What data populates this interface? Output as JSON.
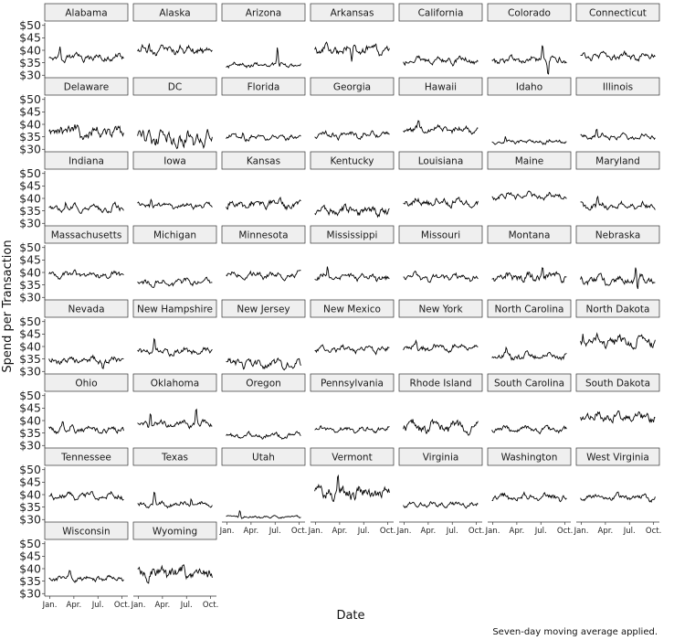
{
  "chart_data": {
    "type": "line",
    "layout": "facet_wrap",
    "ylabel": "Spend per Transaction",
    "xlabel": "Date",
    "caption": "Seven-day moving average applied.",
    "yticks": [
      "$50",
      "$45",
      "$40",
      "$35",
      "$30"
    ],
    "ytick_values": [
      50,
      45,
      40,
      35,
      30
    ],
    "ylim": [
      29,
      51
    ],
    "xticks": [
      "Jan.",
      "Apr.",
      "Jul.",
      "Oct."
    ],
    "xtick_values": [
      0,
      3,
      6,
      9
    ],
    "xlim": [
      -0.4,
      9.5
    ],
    "line_color": "#000000",
    "strip_fill": "#efefef",
    "panels": [
      {
        "name": "Alabama",
        "base": 37,
        "amp": 1.5,
        "spikes": [
          [
            1.3,
            4
          ]
        ]
      },
      {
        "name": "Alaska",
        "base": 40,
        "amp": 2.0,
        "spikes": [
          [
            1.3,
            3
          ],
          [
            5.2,
            3
          ]
        ]
      },
      {
        "name": "Arizona",
        "base": 34,
        "amp": 1.2,
        "spikes": [
          [
            6.3,
            7
          ]
        ]
      },
      {
        "name": "Arkansas",
        "base": 40,
        "amp": 2.0,
        "spikes": [
          [
            4.5,
            -6
          ]
        ]
      },
      {
        "name": "California",
        "base": 36,
        "amp": 1.5,
        "spikes": [
          [
            1.6,
            2
          ]
        ]
      },
      {
        "name": "Colorado",
        "base": 36,
        "amp": 1.5,
        "spikes": [
          [
            6.2,
            6
          ],
          [
            6.9,
            -5
          ]
        ]
      },
      {
        "name": "Connecticut",
        "base": 37.5,
        "amp": 1.5,
        "spikes": []
      },
      {
        "name": "Delaware",
        "base": 37,
        "amp": 2.5,
        "spikes": [
          [
            1.4,
            4
          ]
        ]
      },
      {
        "name": "DC",
        "base": 34,
        "amp": 3.5,
        "spikes": []
      },
      {
        "name": "Florida",
        "base": 35,
        "amp": 1.2,
        "spikes": [
          [
            2.0,
            3
          ]
        ]
      },
      {
        "name": "Georgia",
        "base": 36,
        "amp": 1.5,
        "spikes": []
      },
      {
        "name": "Hawaii",
        "base": 38,
        "amp": 1.5,
        "spikes": [
          [
            1.8,
            3
          ]
        ]
      },
      {
        "name": "Idaho",
        "base": 33,
        "amp": 1.0,
        "spikes": [
          [
            1.6,
            2
          ]
        ]
      },
      {
        "name": "Illinois",
        "base": 35,
        "amp": 1.2,
        "spikes": [
          [
            1.9,
            4
          ]
        ]
      },
      {
        "name": "Indiana",
        "base": 36,
        "amp": 1.5,
        "spikes": [
          [
            2.0,
            2
          ]
        ]
      },
      {
        "name": "Iowa",
        "base": 37,
        "amp": 1.2,
        "spikes": [
          [
            1.6,
            3
          ]
        ]
      },
      {
        "name": "Kansas",
        "base": 37.5,
        "amp": 2.0,
        "spikes": []
      },
      {
        "name": "Kentucky",
        "base": 35,
        "amp": 2.0,
        "spikes": []
      },
      {
        "name": "Louisiana",
        "base": 38.5,
        "amp": 2.0,
        "spikes": []
      },
      {
        "name": "Maine",
        "base": 41,
        "amp": 1.5,
        "spikes": []
      },
      {
        "name": "Maryland",
        "base": 37,
        "amp": 1.5,
        "spikes": [
          [
            2.0,
            3
          ]
        ]
      },
      {
        "name": "Massachusetts",
        "base": 39,
        "amp": 1.5,
        "spikes": []
      },
      {
        "name": "Michigan",
        "base": 36,
        "amp": 1.5,
        "spikes": []
      },
      {
        "name": "Minnesota",
        "base": 39,
        "amp": 1.5,
        "spikes": []
      },
      {
        "name": "Mississippi",
        "base": 38,
        "amp": 1.5,
        "spikes": [
          [
            1.5,
            4
          ]
        ]
      },
      {
        "name": "Missouri",
        "base": 38,
        "amp": 1.5,
        "spikes": []
      },
      {
        "name": "Montana",
        "base": 38,
        "amp": 2.0,
        "spikes": [
          [
            6.2,
            6
          ]
        ]
      },
      {
        "name": "Nebraska",
        "base": 37,
        "amp": 2.0,
        "spikes": [
          [
            6.8,
            7
          ],
          [
            7.0,
            -5
          ]
        ]
      },
      {
        "name": "Nevada",
        "base": 34.5,
        "amp": 1.5,
        "spikes": [
          [
            6.6,
            -4
          ]
        ]
      },
      {
        "name": "New Hampshire",
        "base": 38,
        "amp": 1.5,
        "spikes": [
          [
            2.0,
            6
          ]
        ]
      },
      {
        "name": "New Jersey",
        "base": 33,
        "amp": 2.0,
        "spikes": []
      },
      {
        "name": "New Mexico",
        "base": 39,
        "amp": 1.5,
        "spikes": []
      },
      {
        "name": "New York",
        "base": 39.5,
        "amp": 1.5,
        "spikes": [
          [
            1.5,
            3
          ]
        ]
      },
      {
        "name": "North Carolina",
        "base": 36,
        "amp": 1.5,
        "spikes": [
          [
            1.7,
            3
          ]
        ]
      },
      {
        "name": "North Dakota",
        "base": 42,
        "amp": 2.5,
        "spikes": [
          [
            0.2,
            5
          ]
        ]
      },
      {
        "name": "Ohio",
        "base": 36.5,
        "amp": 1.5,
        "spikes": [
          [
            1.6,
            2
          ]
        ]
      },
      {
        "name": "Oklahoma",
        "base": 38.5,
        "amp": 1.5,
        "spikes": [
          [
            1.5,
            6
          ],
          [
            7.2,
            7
          ]
        ]
      },
      {
        "name": "Oregon",
        "base": 34,
        "amp": 1.2,
        "spikes": []
      },
      {
        "name": "Pennsylvania",
        "base": 36.5,
        "amp": 1.2,
        "spikes": []
      },
      {
        "name": "Rhode Island",
        "base": 37.5,
        "amp": 2.5,
        "spikes": []
      },
      {
        "name": "South Carolina",
        "base": 36.5,
        "amp": 1.2,
        "spikes": []
      },
      {
        "name": "South Dakota",
        "base": 41.5,
        "amp": 2.0,
        "spikes": []
      },
      {
        "name": "Tennessee",
        "base": 39.5,
        "amp": 1.5,
        "spikes": []
      },
      {
        "name": "Texas",
        "base": 36,
        "amp": 1.2,
        "spikes": [
          [
            2.0,
            5
          ],
          [
            6.6,
            3
          ]
        ]
      },
      {
        "name": "Utah",
        "base": 31,
        "amp": 0.6,
        "spikes": [
          [
            1.6,
            3
          ]
        ]
      },
      {
        "name": "Vermont",
        "base": 41,
        "amp": 3.0,
        "spikes": [
          [
            2.8,
            8
          ]
        ]
      },
      {
        "name": "Virginia",
        "base": 36,
        "amp": 1.2,
        "spikes": []
      },
      {
        "name": "Washington",
        "base": 39,
        "amp": 1.5,
        "spikes": []
      },
      {
        "name": "West Virginia",
        "base": 39,
        "amp": 1.5,
        "spikes": []
      },
      {
        "name": "Wisconsin",
        "base": 36,
        "amp": 1.2,
        "spikes": [
          [
            2.5,
            3
          ]
        ]
      },
      {
        "name": "Wyoming",
        "base": 38.5,
        "amp": 3.0,
        "spikes": []
      }
    ]
  }
}
